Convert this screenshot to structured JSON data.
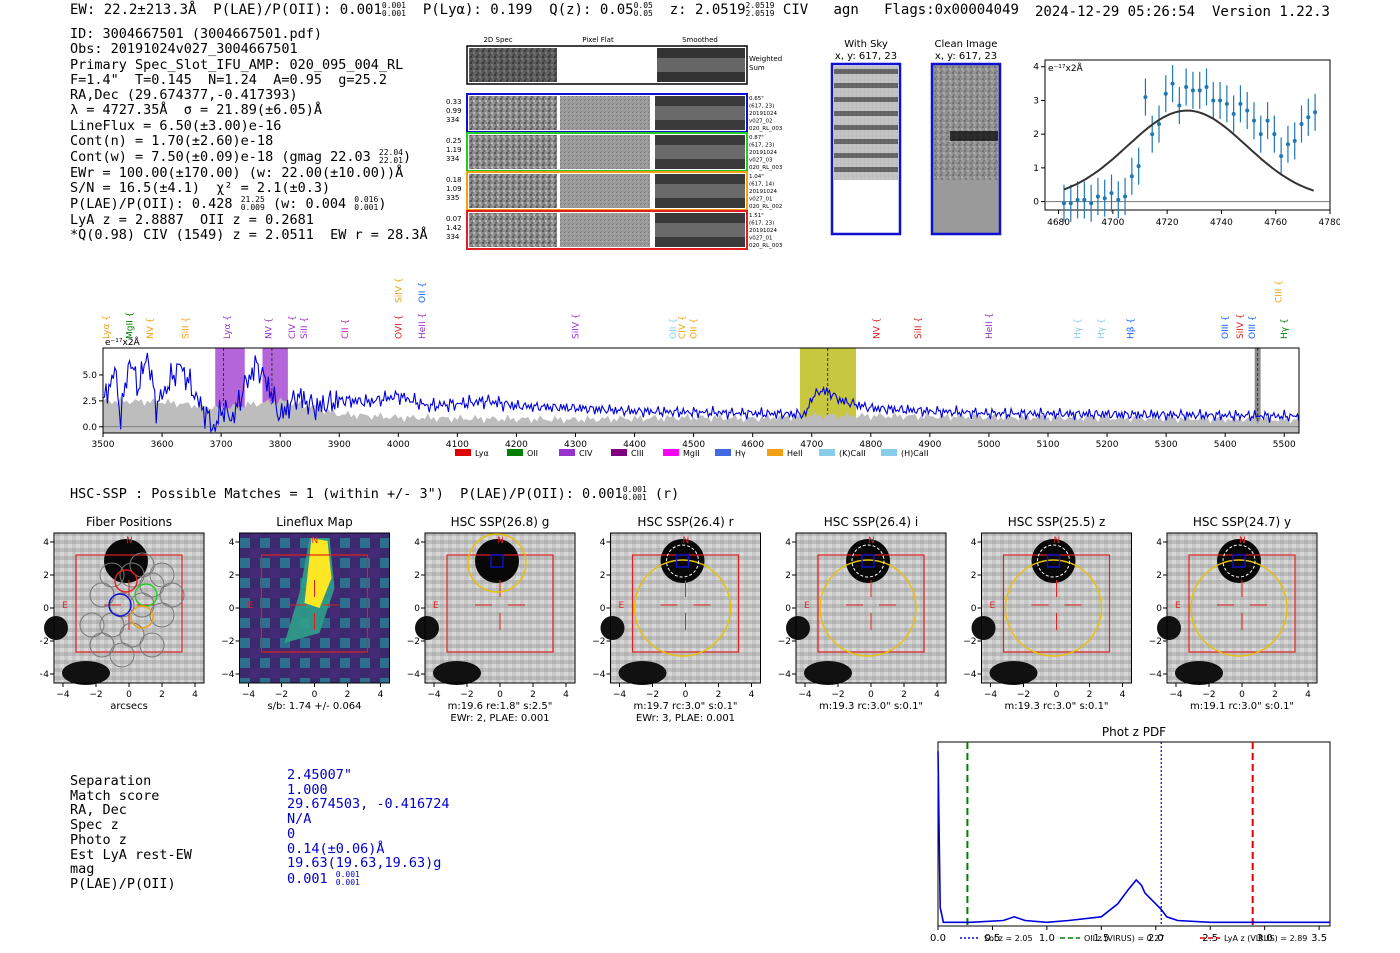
{
  "header": {
    "ew": "EW: 22.2±213.3Å",
    "plae": "P(LAE)/P(OII): 0.001",
    "plae_up": "0.001",
    "plae_lo": "0.001",
    "plya": "P(Lyα): 0.199",
    "qz": "Q(z): 0.05",
    "qz_up": "0.05",
    "qz_lo": "0.05",
    "z": "z: 2.0519",
    "z_up": "2.0519",
    "z_lo": "2.0519",
    "line": "CIV",
    "type": "agn",
    "flags": "Flags:0x00004049",
    "datetime": "2024-12-29 05:26:54",
    "version": "Version 1.22.3"
  },
  "info": {
    "id": "ID: 3004667501 (3004667501.pdf)",
    "obs": "Obs: 20191024v027_3004667501",
    "primary": "Primary Spec_Slot_IFU_AMP: 020_095_004_RL",
    "params": "F=1.4\"  T=0.145  N=1.24  A=0.95  g=25.2",
    "radec": "RA,Dec (29.674377,-0.417393)",
    "lambda": "λ = 4727.35Å  σ = 21.89(±6.05)Å",
    "lineflux": "LineFlux = 6.50(±3.00)e-16",
    "contn": "Cont(n) = 1.70(±2.60)e-18",
    "contw": "Cont(w) = 7.50(±0.09)e-18 (gmag 22.03",
    "contw_up": "22.04",
    "contw_lo": "22.01",
    "contw_end": ")",
    "ewr": "EWr = 100.00(±170.00) (w: 22.00(±10.00))Å",
    "sn": "S/N = 16.5(±4.1)  χ² = 2.1(±0.3)",
    "plae": "P(LAE)/P(OII): 0.428",
    "plae_up": "21.25",
    "plae_lo": "0.009",
    "plae_w": "(w: 0.004",
    "plae_w_up": "0.016",
    "plae_w_lo": "0.001",
    "plae_w_end": ")",
    "lyaz": "LyA z = 2.8887  OII z = 0.2681",
    "qline": "*Q(0.98) CIV (1549) z = 2.0511  EW r = 28.3Å"
  },
  "cutouts": {
    "col_labels": [
      "2D Spec",
      "Pixel Flat",
      "Smoothed"
    ],
    "weighted": [
      "Weighted",
      "Sum"
    ],
    "rows": [
      {
        "left": [
          "0.33",
          "0.99",
          "334"
        ],
        "right": [
          "0.65\"",
          "(617, 23)",
          "20191024",
          "v027_02",
          "020_RL_003"
        ],
        "color": "#1010d0"
      },
      {
        "left": [
          "0.25",
          "1.19",
          "334"
        ],
        "right": [
          "0.87\"",
          "(617, 23)",
          "20191024",
          "v027_03",
          "020_RL_003"
        ],
        "color": "#22cc22"
      },
      {
        "left": [
          "0.18",
          "1.09",
          "335"
        ],
        "right": [
          "1.04\"",
          "(617, 14)",
          "20191024",
          "v027_01",
          "020_RL_002"
        ],
        "color": "#f0a010"
      },
      {
        "left": [
          "0.07",
          "1.42",
          "334"
        ],
        "right": [
          "1.51\"",
          "(617, 23)",
          "20191024",
          "v027_01",
          "020_RL_003"
        ],
        "color": "#e02020"
      }
    ]
  },
  "sky": {
    "with_sky": "With Sky",
    "with_sky_xy": "x, y: 617, 23",
    "clean": "Clean Image",
    "clean_xy": "x, y: 617, 23"
  },
  "chart_data": [
    {
      "id": "line_fit",
      "type": "scatter",
      "ylabel": "e⁻¹⁷x2Å",
      "xlim": [
        4675,
        4780
      ],
      "ylim": [
        -0.25,
        4.2
      ],
      "xticks": [
        4680,
        4700,
        4720,
        4740,
        4760,
        4780
      ],
      "yticks": [
        0,
        1,
        2,
        3,
        4
      ],
      "x": [
        4682,
        4684.5,
        4687,
        4689.5,
        4692,
        4694.5,
        4697,
        4699.5,
        4702,
        4704.5,
        4707,
        4709.5,
        4712,
        4714.5,
        4717,
        4719.5,
        4722,
        4724.5,
        4727,
        4729.5,
        4732,
        4734.5,
        4737,
        4739.5,
        4742,
        4744.5,
        4747,
        4749.5,
        4752,
        4754.5,
        4757,
        4759.5,
        4762,
        4764.5,
        4767,
        4769.5,
        4772,
        4774.5
      ],
      "y": [
        -0.05,
        -0.05,
        0.05,
        0.05,
        -0.05,
        0.15,
        0.1,
        0.25,
        0.05,
        0.15,
        0.75,
        1.05,
        3.1,
        2.0,
        2.3,
        3.2,
        3.5,
        2.85,
        3.4,
        3.3,
        3.3,
        3.4,
        3.0,
        3.0,
        2.9,
        2.6,
        2.9,
        2.7,
        2.4,
        2.0,
        2.4,
        2.0,
        1.35,
        1.7,
        1.8,
        2.3,
        2.5,
        2.65
      ],
      "yerr": 0.55,
      "fit": {
        "amplitude": 2.65,
        "center": 4727.35,
        "sigma": 21.89,
        "offset": 0.05
      }
    },
    {
      "id": "spectrum",
      "type": "line",
      "ylabel": "e⁻¹⁷x2Å",
      "xlim": [
        3500,
        5525
      ],
      "ylim": [
        -0.6,
        7.6
      ],
      "xticks": [
        3500,
        3600,
        3700,
        3800,
        3900,
        4000,
        4100,
        4200,
        4300,
        4400,
        4500,
        4600,
        4700,
        4800,
        4900,
        5000,
        5100,
        5200,
        5300,
        5400,
        5500
      ],
      "yticks": [
        0.0,
        2.5,
        5.0
      ],
      "flux_knots": [
        [
          3500,
          2.2
        ],
        [
          3520,
          5.5
        ],
        [
          3530,
          1.0
        ],
        [
          3545,
          6.5
        ],
        [
          3560,
          3.8
        ],
        [
          3575,
          7.0
        ],
        [
          3590,
          2.0
        ],
        [
          3610,
          4.0
        ],
        [
          3630,
          6.0
        ],
        [
          3660,
          2.6
        ],
        [
          3690,
          -0.3
        ],
        [
          3700,
          1.8
        ],
        [
          3720,
          0.8
        ],
        [
          3740,
          4.0
        ],
        [
          3760,
          6.0
        ],
        [
          3780,
          4.0
        ],
        [
          3800,
          1.0
        ],
        [
          3830,
          3.0
        ],
        [
          3860,
          1.8
        ],
        [
          3900,
          2.6
        ],
        [
          3950,
          2.4
        ],
        [
          4000,
          3.0
        ],
        [
          4050,
          2.0
        ],
        [
          4100,
          2.2
        ],
        [
          4150,
          2.5
        ],
        [
          4200,
          2.0
        ],
        [
          4300,
          1.8
        ],
        [
          4400,
          1.5
        ],
        [
          4500,
          1.4
        ],
        [
          4600,
          1.3
        ],
        [
          4690,
          1.2
        ],
        [
          4700,
          2.8
        ],
        [
          4715,
          3.5
        ],
        [
          4730,
          3.3
        ],
        [
          4750,
          2.5
        ],
        [
          4800,
          1.8
        ],
        [
          4900,
          1.5
        ],
        [
          5000,
          1.3
        ],
        [
          5200,
          1.2
        ],
        [
          5400,
          1.1
        ],
        [
          5525,
          1.0
        ]
      ],
      "sky_knots": [
        [
          3500,
          2.5
        ],
        [
          3600,
          2.4
        ],
        [
          3700,
          1.8
        ],
        [
          3800,
          2.5
        ],
        [
          3850,
          2.0
        ],
        [
          3900,
          1.2
        ],
        [
          4000,
          0.9
        ],
        [
          4100,
          0.8
        ],
        [
          4300,
          0.7
        ],
        [
          4500,
          0.9
        ],
        [
          4600,
          0.8
        ],
        [
          4700,
          1.1
        ],
        [
          4900,
          1.0
        ],
        [
          5100,
          0.9
        ],
        [
          5300,
          0.8
        ],
        [
          5525,
          0.7
        ]
      ],
      "line_markers": [
        {
          "label": "Lyα",
          "x": 3505,
          "color": "#f0a010",
          "row": 1
        },
        {
          "label": "MgII",
          "x": 3545,
          "color": "#008000",
          "row": 1
        },
        {
          "label": "NV",
          "x": 3580,
          "color": "#f0a010",
          "row": 1
        },
        {
          "label": "SiII",
          "x": 3640,
          "color": "#f0a010",
          "row": 1
        },
        {
          "label": "Lyα",
          "x": 3710,
          "color": "#9932cc",
          "row": 1
        },
        {
          "label": "NV",
          "x": 3780,
          "color": "#9932cc",
          "row": 1
        },
        {
          "label": "CIV",
          "x": 3820,
          "color": "#9932cc",
          "row": 1
        },
        {
          "label": "SiII",
          "x": 3840,
          "color": "#9932cc",
          "row": 1
        },
        {
          "label": "CII",
          "x": 3910,
          "color": "#c020c0",
          "row": 1
        },
        {
          "label": "SiIV",
          "x": 4000,
          "color": "#f0a010",
          "row": 0
        },
        {
          "label": "OII",
          "x": 4040,
          "color": "#1060ff",
          "row": 0
        },
        {
          "label": "OVI",
          "x": 4000,
          "color": "#e02020",
          "row": 1
        },
        {
          "label": "HeII",
          "x": 4040,
          "color": "#9932cc",
          "row": 1
        },
        {
          "label": "SiIV",
          "x": 4300,
          "color": "#9932cc",
          "row": 1
        },
        {
          "label": "OII",
          "x": 4465,
          "color": "#87ceeb",
          "row": 1
        },
        {
          "label": "CIV",
          "x": 4480,
          "color": "#f0a010",
          "row": 1
        },
        {
          "label": "OII",
          "x": 4500,
          "color": "#f0a010",
          "row": 1
        },
        {
          "label": "NV",
          "x": 4810,
          "color": "#e02020",
          "row": 1
        },
        {
          "label": "SiII",
          "x": 4880,
          "color": "#e02020",
          "row": 1
        },
        {
          "label": "HeII",
          "x": 5000,
          "color": "#9932cc",
          "row": 1
        },
        {
          "label": "Hγ",
          "x": 5150,
          "color": "#87ceeb",
          "row": 1
        },
        {
          "label": "Hγ",
          "x": 5190,
          "color": "#87ceeb",
          "row": 1
        },
        {
          "label": "Hβ",
          "x": 5240,
          "color": "#1060ff",
          "row": 1
        },
        {
          "label": "OIII",
          "x": 5400,
          "color": "#1060ff",
          "row": 1
        },
        {
          "label": "SiIV",
          "x": 5425,
          "color": "#e02020",
          "row": 1
        },
        {
          "label": "OIII",
          "x": 5445,
          "color": "#1060ff",
          "row": 1
        },
        {
          "label": "CIII",
          "x": 5490,
          "color": "#f0a010",
          "row": 0
        },
        {
          "label": "Hγ",
          "x": 5500,
          "color": "#008000",
          "row": 1
        }
      ],
      "shaded": [
        {
          "x0": 3690,
          "x1": 3740,
          "color": "#9932cc",
          "dashed": 3704
        },
        {
          "x0": 3770,
          "x1": 3813,
          "color": "#9932cc",
          "dashed": 3786
        },
        {
          "x0": 4680,
          "x1": 4775,
          "color": "#b5b500",
          "dashed": 4727
        },
        {
          "x0": 5450,
          "x1": 5460,
          "color": "#666666",
          "dashed": 5455
        }
      ],
      "legend": [
        {
          "label": "Lyα",
          "color": "#e00000"
        },
        {
          "label": "OII",
          "color": "#008000"
        },
        {
          "label": "CIV",
          "color": "#9932cc"
        },
        {
          "label": "CIII",
          "color": "#800080"
        },
        {
          "label": "MgII",
          "color": "#ff00ff"
        },
        {
          "label": "Hγ",
          "color": "#4169e1"
        },
        {
          "label": "HeII",
          "color": "#f0a010"
        },
        {
          "label": "(K)CaII",
          "color": "#87ceeb"
        },
        {
          "label": "(H)CaII",
          "color": "#87ceeb"
        }
      ]
    },
    {
      "id": "phot_z_pdf",
      "type": "line",
      "title": "Phot z PDF",
      "xlim": [
        0,
        3.6
      ],
      "ylim": [
        0,
        1.0
      ],
      "xticks": [
        "0.0",
        "0.5",
        "1.0",
        "1.5",
        "2.0",
        "2.5",
        "3.0",
        "3.5"
      ],
      "pdf": [
        [
          0,
          0.95
        ],
        [
          0.02,
          0.1
        ],
        [
          0.05,
          0.02
        ],
        [
          0.3,
          0.02
        ],
        [
          0.6,
          0.03
        ],
        [
          0.7,
          0.05
        ],
        [
          0.8,
          0.03
        ],
        [
          1.0,
          0.02
        ],
        [
          1.2,
          0.03
        ],
        [
          1.5,
          0.05
        ],
        [
          1.65,
          0.12
        ],
        [
          1.75,
          0.2
        ],
        [
          1.82,
          0.25
        ],
        [
          1.87,
          0.22
        ],
        [
          1.9,
          0.18
        ],
        [
          1.95,
          0.15
        ],
        [
          2.0,
          0.12
        ],
        [
          2.05,
          0.09
        ],
        [
          2.1,
          0.05
        ],
        [
          2.2,
          0.03
        ],
        [
          2.5,
          0.02
        ],
        [
          3.0,
          0.02
        ],
        [
          3.6,
          0.02
        ]
      ],
      "verticals": [
        {
          "x": 2.05,
          "color": "#0000dd",
          "style": "dotted",
          "label": "Sol z = 2.05"
        },
        {
          "x": 0.27,
          "color": "#008000",
          "style": "dashed",
          "label": "OII z (VIRUS) = 0.27"
        },
        {
          "x": 2.89,
          "color": "#e00000",
          "style": "dashed",
          "label": "LyA z (VIRUS) = 2.89"
        }
      ]
    }
  ],
  "hsc": {
    "title": "HSC-SSP : Possible Matches = 1 (within +/- 3\")  P(LAE)/P(OII): 0.001",
    "title_up": "0.001",
    "title_lo": "0.001",
    "title_end": " (r)",
    "axis_ticks": [
      "−4",
      "−2",
      "0",
      "2",
      "4"
    ],
    "panels": [
      {
        "title": "Fiber Positions",
        "cap1": "arcsecs",
        "cap2": ""
      },
      {
        "title": "Lineflux Map",
        "cap1": "s/b: 1.74 +/- 0.064",
        "cap2": ""
      },
      {
        "title": "HSC SSP(26.8) g",
        "cap1": "m:19.6  re:1.8\"  s:2.5\"",
        "cap2": "EWr: 2, PLAE: 0.001"
      },
      {
        "title": "HSC SSP(26.4) r",
        "cap1": "m:19.7 rc:3.0\"  s:0.1\"",
        "cap2": "EWr: 3, PLAE: 0.001"
      },
      {
        "title": "HSC SSP(26.4) i",
        "cap1": "m:19.3 rc:3.0\"  s:0.1\"",
        "cap2": ""
      },
      {
        "title": "HSC SSP(25.5) z",
        "cap1": "m:19.3 rc:3.0\"  s:0.1\"",
        "cap2": ""
      },
      {
        "title": "HSC SSP(24.7) y",
        "cap1": "m:19.1 rc:3.0\"  s:0.1\"",
        "cap2": ""
      }
    ],
    "compass_n": "N",
    "compass_e": "E"
  },
  "match": {
    "labels": [
      "Separation",
      "Match score",
      "RA, Dec",
      "Spec z",
      "Photo z",
      "Est LyA rest-EW",
      "mag",
      "P(LAE)/P(OII)"
    ],
    "values": [
      "2.45007\"",
      "1.000",
      "29.674503, -0.416724",
      "N/A",
      "0",
      "0.14(±0.06)Å",
      "19.63(19.63,19.63)g"
    ],
    "plae": "0.001",
    "plae_up": "0.001",
    "plae_lo": "0.001"
  }
}
